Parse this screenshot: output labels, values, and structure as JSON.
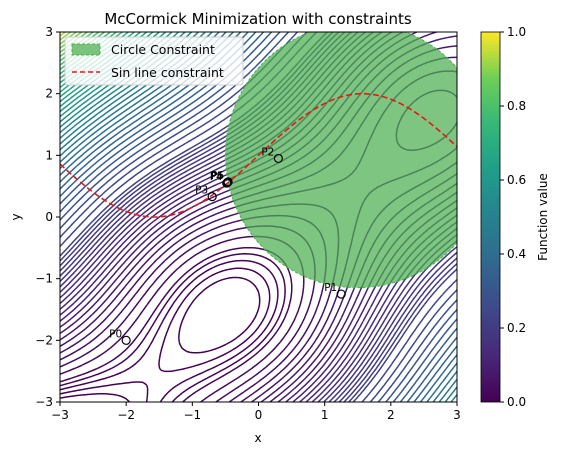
{
  "chart_data": {
    "type": "contour",
    "title": "McCormick Minimization with constraints",
    "xlabel": "x",
    "ylabel": "y",
    "xlim": [
      -3,
      3
    ],
    "ylim": [
      -3,
      3
    ],
    "xticks": [
      "−3",
      "−2",
      "−1",
      "0",
      "1",
      "2",
      "3"
    ],
    "yticks": [
      "−3",
      "−2",
      "−1",
      "0",
      "1",
      "2",
      "3"
    ],
    "function": "sin(x+y) + (x-y)^2 - 1.5x + 2.5y + 1",
    "contour_levels": [
      -1.5,
      -1.25,
      -1.0,
      -0.75,
      -0.5,
      0.0,
      0.5,
      1.0,
      1.5,
      2.0,
      2.5,
      3.0,
      3.5,
      4.0,
      4.5,
      5.0,
      5.5,
      6.0,
      6.5,
      7.0,
      7.5,
      8.0,
      8.5,
      9.0,
      9.5,
      10.0,
      11,
      12,
      13,
      14,
      15,
      16,
      17,
      18,
      19,
      20,
      21,
      22,
      23,
      24,
      25,
      26,
      27,
      28,
      29,
      30,
      31,
      32,
      33,
      34,
      35,
      36,
      37,
      38,
      39,
      40,
      41,
      42,
      43,
      44,
      45,
      46,
      47,
      48,
      49,
      50,
      51,
      52,
      53,
      54,
      55,
      56,
      57,
      58,
      59,
      60
    ],
    "circle_constraint": {
      "label": "Circle Constraint",
      "center": [
        1.5,
        1.0
      ],
      "radius": 2.0,
      "color": "#4CAF50",
      "alpha": 0.72
    },
    "sin_constraint": {
      "label": "Sin line constraint",
      "equation": "y = sin(x) + 1",
      "x_range": [
        -3,
        3
      ],
      "color": "#e31a1c"
    },
    "legend": {
      "position": "upper-left",
      "entries": [
        "Circle Constraint",
        "Sin line constraint"
      ]
    },
    "points": [
      {
        "label": "P0",
        "x": -2.0,
        "y": -2.0
      },
      {
        "label": "P1",
        "x": 1.25,
        "y": -1.25
      },
      {
        "label": "P2",
        "x": 0.3,
        "y": 0.95
      },
      {
        "label": "P3",
        "x": -0.7,
        "y": 0.33
      },
      {
        "label": "P4",
        "x": -0.48,
        "y": 0.55
      },
      {
        "label": "P5",
        "x": -0.47,
        "y": 0.56
      },
      {
        "label": "P6",
        "x": -0.46,
        "y": 0.57
      }
    ],
    "colorbar": {
      "label": "Function value",
      "range": [
        0,
        1
      ],
      "ticks": [
        "0.0",
        "0.2",
        "0.4",
        "0.6",
        "0.8",
        "1.0"
      ],
      "colormap": "viridis"
    }
  }
}
